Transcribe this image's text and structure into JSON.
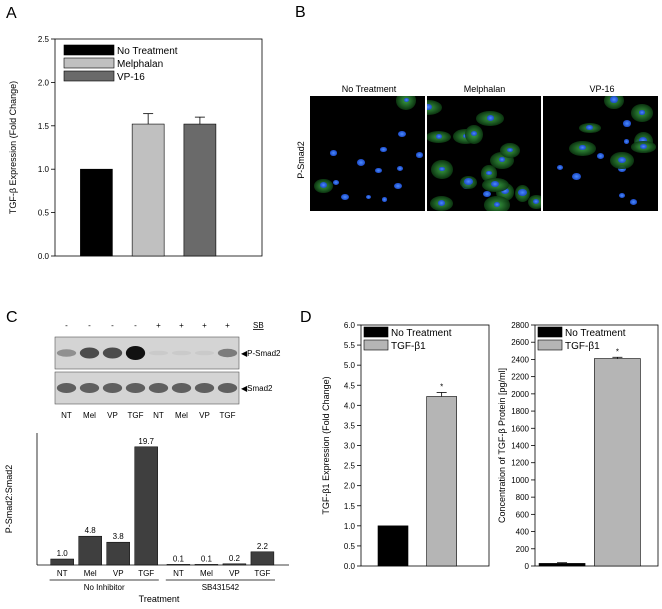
{
  "panels": {
    "A": {
      "letter": "A",
      "chart_data": {
        "type": "bar",
        "ylabel": "TGF-β Expression (Fold Change)",
        "ylim": [
          0,
          2.5
        ],
        "yticks": [
          "0.0",
          "0.5",
          "1.0",
          "1.5",
          "2.0",
          "2.5"
        ],
        "categories": [
          "No Treatment",
          "Melphalan",
          "VP-16"
        ],
        "values": [
          1.0,
          1.52,
          1.52
        ],
        "errors": [
          0,
          0.12,
          0.08
        ],
        "colors": [
          "#000000",
          "#c0c0c0",
          "#6a6a6a"
        ],
        "legend": [
          "No Treatment",
          "Melphalan",
          "VP-16"
        ],
        "legend_position": "top-left"
      }
    },
    "B": {
      "letter": "B",
      "row_label": "P-Smad2",
      "titles": [
        "No Treatment",
        "Melphalan",
        "VP-16"
      ]
    },
    "C": {
      "letter": "C",
      "blot": {
        "sb_signs": [
          "-",
          "-",
          "-",
          "-",
          "+",
          "+",
          "+",
          "+"
        ],
        "sb_label": "SB",
        "band_labels": [
          "◀P-Smad2",
          "◀Smad2"
        ],
        "lane_labels": [
          "NT",
          "Mel",
          "VP",
          "TGF",
          "NT",
          "Mel",
          "VP",
          "TGF"
        ],
        "psmad2_intensity": [
          0.35,
          0.7,
          0.7,
          1.0,
          0.05,
          0.05,
          0.05,
          0.45
        ],
        "smad2_intensity": [
          0.6,
          0.6,
          0.6,
          0.6,
          0.6,
          0.6,
          0.6,
          0.6
        ]
      },
      "chart_data": {
        "type": "bar",
        "ylabel": "P-Smad2:Smad2",
        "ylim": [
          0,
          22
        ],
        "categories": [
          "NT",
          "Mel",
          "VP",
          "TGF",
          "NT",
          "Mel",
          "VP",
          "TGF"
        ],
        "values": [
          1.0,
          4.8,
          3.8,
          19.7,
          0.1,
          0.1,
          0.2,
          2.2
        ],
        "value_labels": [
          "1.0",
          "4.8",
          "3.8",
          "19.7",
          "0.1",
          "0.1",
          "0.2",
          "2.2"
        ],
        "groups": [
          "No Inhibitor",
          "SB431542"
        ],
        "xlabel": "Treatment",
        "color": "#3f3f3f"
      }
    },
    "D": {
      "letter": "D",
      "charts": [
        {
          "chart_data": {
            "type": "bar",
            "ylabel": "TGF-β1 Expression (Fold Change)",
            "ylim": [
              0,
              6.0
            ],
            "yticks": [
              "0.0",
              "0.5",
              "1.0",
              "1.5",
              "2.0",
              "2.5",
              "3.0",
              "3.5",
              "4.0",
              "4.5",
              "5.0",
              "5.5",
              "6.0"
            ],
            "categories": [
              "No Treatment",
              "TGF-β1"
            ],
            "values": [
              1.0,
              4.22
            ],
            "errors": [
              0,
              0.1
            ],
            "colors": [
              "#000000",
              "#b5b5b5"
            ],
            "legend": [
              "No Treatment",
              "TGF-β1"
            ],
            "significance": "*"
          }
        },
        {
          "chart_data": {
            "type": "bar",
            "ylabel": "Concentration of TGF-β Protein [pg/ml]",
            "ylim": [
              0,
              2800
            ],
            "yticks": [
              "0",
              "200",
              "400",
              "600",
              "800",
              "1000",
              "1200",
              "1400",
              "1600",
              "1800",
              "2000",
              "2200",
              "2400",
              "2600",
              "2800"
            ],
            "categories": [
              "No Treatment",
              "TGF-β1"
            ],
            "values": [
              30,
              2410
            ],
            "errors": [
              8,
              15
            ],
            "colors": [
              "#000000",
              "#b5b5b5"
            ],
            "legend": [
              "No Treatment",
              "TGF-β1"
            ],
            "significance": "*"
          }
        }
      ]
    }
  }
}
